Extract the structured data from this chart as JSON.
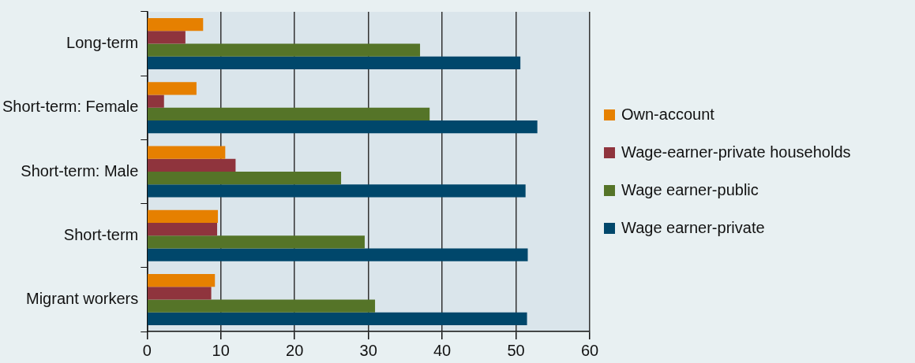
{
  "chart_data": {
    "type": "bar",
    "orientation": "horizontal",
    "categories": [
      "Long-term",
      "Short-term: Female",
      "Short-term: Male",
      "Short-term",
      "Migrant workers"
    ],
    "series": [
      {
        "name": "Own-account",
        "color": "#e68000",
        "values": [
          7.6,
          6.7,
          10.6,
          9.6,
          9.2
        ]
      },
      {
        "name": "Wage-earner-private households",
        "color": "#8f343d",
        "values": [
          5.2,
          2.3,
          12.0,
          9.5,
          8.7
        ]
      },
      {
        "name": "Wage earner-public",
        "color": "#557428",
        "values": [
          37.0,
          38.3,
          26.3,
          29.5,
          30.9
        ]
      },
      {
        "name": "Wage earner-private",
        "color": "#00476b",
        "values": [
          50.6,
          52.9,
          51.3,
          51.6,
          51.5
        ]
      }
    ],
    "xlim": [
      0,
      60
    ],
    "xticks": [
      0,
      10,
      20,
      30,
      40,
      50,
      60
    ],
    "grid": "x",
    "legend": "right"
  }
}
